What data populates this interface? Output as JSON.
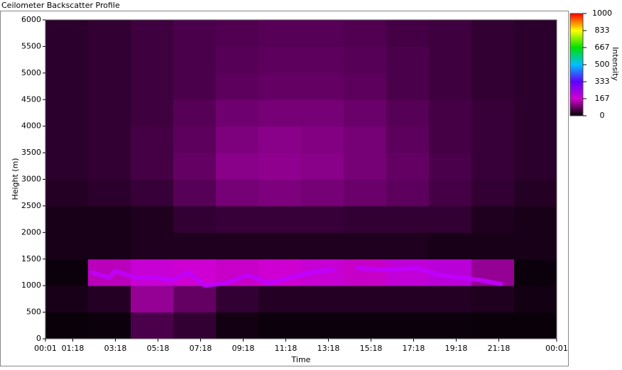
{
  "chart_data": {
    "type": "heatmap",
    "title": "Ceilometer Backscatter Profile",
    "xlabel": "Time",
    "ylabel": "Height (m)",
    "colorbar_label": "Intensity",
    "xlim": [
      0.0167,
      24.0167
    ],
    "ylim": [
      0,
      6000
    ],
    "xticks": [
      {
        "value": 0.0167,
        "label": "00:01"
      },
      {
        "value": 1.3,
        "label": "01:18"
      },
      {
        "value": 3.3,
        "label": "03:18"
      },
      {
        "value": 5.3,
        "label": "05:18"
      },
      {
        "value": 7.3,
        "label": "07:18"
      },
      {
        "value": 9.3,
        "label": "09:18"
      },
      {
        "value": 11.3,
        "label": "11:18"
      },
      {
        "value": 13.3,
        "label": "13:18"
      },
      {
        "value": 15.3,
        "label": "15:18"
      },
      {
        "value": 17.3,
        "label": "17:18"
      },
      {
        "value": 19.3,
        "label": "19:18"
      },
      {
        "value": 21.3,
        "label": "21:18"
      },
      {
        "value": 24.0167,
        "label": "00:01"
      }
    ],
    "yticks": [
      0,
      500,
      1000,
      1500,
      2000,
      2500,
      3000,
      3500,
      4000,
      4500,
      5000,
      5500,
      6000
    ],
    "clim": [
      0,
      1000
    ],
    "cticks": [
      0,
      167,
      333,
      500,
      667,
      833,
      1000
    ],
    "colormap": [
      {
        "value": 0,
        "color": "#000000"
      },
      {
        "value": 167,
        "color": "#d000d0"
      },
      {
        "value": 333,
        "color": "#6000ff"
      },
      {
        "value": 500,
        "color": "#00c0ff"
      },
      {
        "value": 667,
        "color": "#00e000"
      },
      {
        "value": 833,
        "color": "#ffff00"
      },
      {
        "value": 1000,
        "color": "#ff0000"
      }
    ],
    "z": [
      [
        8,
        10,
        60,
        40,
        15,
        10,
        10,
        10,
        10,
        10,
        8,
        8
      ],
      [
        20,
        30,
        120,
        80,
        40,
        30,
        30,
        30,
        30,
        30,
        25,
        15
      ],
      [
        10,
        150,
        180,
        170,
        160,
        170,
        180,
        160,
        190,
        200,
        120,
        10
      ],
      [
        20,
        20,
        25,
        25,
        25,
        25,
        25,
        25,
        25,
        20,
        20,
        20
      ],
      [
        20,
        20,
        25,
        40,
        45,
        45,
        45,
        40,
        40,
        40,
        25,
        20
      ],
      [
        30,
        35,
        45,
        70,
        95,
        100,
        95,
        85,
        75,
        55,
        40,
        30
      ],
      [
        35,
        40,
        55,
        80,
        110,
        115,
        110,
        95,
        80,
        60,
        45,
        35
      ],
      [
        35,
        40,
        55,
        75,
        100,
        110,
        105,
        95,
        75,
        55,
        45,
        35
      ],
      [
        35,
        40,
        50,
        70,
        90,
        95,
        95,
        85,
        70,
        55,
        45,
        35
      ],
      [
        35,
        40,
        50,
        60,
        75,
        80,
        80,
        75,
        60,
        50,
        40,
        35
      ],
      [
        35,
        40,
        50,
        60,
        70,
        75,
        75,
        70,
        60,
        50,
        40,
        35
      ],
      [
        35,
        40,
        50,
        60,
        65,
        70,
        70,
        65,
        55,
        50,
        40,
        35
      ]
    ],
    "layer": {
      "x": [
        2.2,
        3.0,
        3.3,
        4.0,
        4.5,
        5.2,
        6.0,
        6.7,
        7.5,
        8.5,
        9.5,
        10.5,
        11.5,
        12.5,
        13.5,
        14.3,
        14.7,
        16.0,
        17.5,
        18.5,
        19.5,
        20.5,
        21.4
      ],
      "values": [
        1250,
        1150,
        1280,
        1180,
        1150,
        1150,
        1100,
        1250,
        1000,
        1050,
        1200,
        1050,
        1150,
        1250,
        1300,
        null,
        1330,
        1300,
        1330,
        1200,
        1150,
        1100,
        1030
      ],
      "color": "#c000ff"
    }
  }
}
